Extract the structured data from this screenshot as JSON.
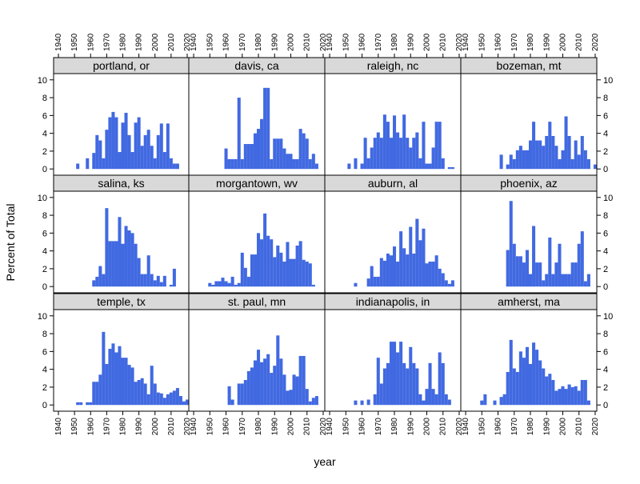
{
  "chart_data": {
    "type": "histogram-lattice",
    "xlabel": "year",
    "ylabel": "Percent of Total",
    "xlim": [
      1937,
      2021
    ],
    "ylim": [
      -0.7,
      10.7
    ],
    "x_ticks": [
      1940,
      1950,
      1960,
      1970,
      1980,
      1990,
      2000,
      2010,
      2020
    ],
    "y_ticks": [
      0,
      2,
      4,
      6,
      8,
      10
    ],
    "bin_start": 1945,
    "bin_width": 2,
    "bar_color": "#4169E1",
    "strip_color": "#d9d9d9",
    "panels": [
      {
        "name": "portland, or",
        "values": [
          0,
          0,
          0,
          0.6,
          0,
          0,
          1.2,
          0,
          1.8,
          3.8,
          3.2,
          1.2,
          4.4,
          5.8,
          6.4,
          5.8,
          1.9,
          5.2,
          6.3,
          3.8,
          1.9,
          5.2,
          5.8,
          2.6,
          3.8,
          4.4,
          2.6,
          1.2,
          3.8,
          5.1,
          1.9,
          5.1,
          1.2,
          0.6,
          0.6
        ]
      },
      {
        "name": "davis, ca",
        "values": [
          0,
          0,
          0,
          0,
          0,
          0,
          0,
          2.3,
          1.1,
          1.1,
          1.1,
          8,
          1.1,
          2.8,
          2.8,
          2.8,
          4,
          4.5,
          5.6,
          9.1,
          9.1,
          1.1,
          3.4,
          3.4,
          3.4,
          2.3,
          1.7,
          1.7,
          1.1,
          1.1,
          4.5,
          4,
          3.4,
          1.1,
          1.7,
          0.6
        ]
      },
      {
        "name": "raleigh, nc",
        "values": [
          0,
          0,
          0,
          0.6,
          0,
          1.2,
          0,
          0.6,
          3.5,
          1.2,
          2.4,
          3.5,
          4.1,
          3.5,
          6.1,
          5.3,
          3.5,
          6,
          4.1,
          3.5,
          6.1,
          3.5,
          2.4,
          3.5,
          4.1,
          1.2,
          5.3,
          0.6,
          0.6,
          2.4,
          5.3,
          5.3,
          1.2,
          0,
          0.2,
          0.2
        ]
      },
      {
        "name": "bozeman, mt",
        "values": [
          0,
          0,
          0,
          0,
          0,
          0,
          0,
          0,
          1.6,
          0,
          0.5,
          1.6,
          1.1,
          2.1,
          2.6,
          2.1,
          2.1,
          3.2,
          5.3,
          3.2,
          3.2,
          2.6,
          3.7,
          5.3,
          3.7,
          2.6,
          1.1,
          2.1,
          5.9,
          3.7,
          1.1,
          3.2,
          1.6,
          3.7,
          2.1,
          1.1,
          0,
          0.5
        ]
      },
      {
        "name": "salina, ks",
        "values": [
          0,
          0,
          0,
          0,
          0,
          0,
          0,
          0,
          0.7,
          1.1,
          2.3,
          1.4,
          8.8,
          5.1,
          5.1,
          5.1,
          7.8,
          4.8,
          6.8,
          6.3,
          6,
          4.8,
          3.2,
          1.4,
          1.4,
          3.5,
          1.4,
          0.7,
          1.2,
          0.5,
          1.2,
          0,
          0.2,
          2,
          0,
          0
        ]
      },
      {
        "name": "morgantown, wv",
        "values": [
          0,
          0,
          0.4,
          0.2,
          0.6,
          0.6,
          1,
          0.6,
          0.4,
          1.1,
          0.2,
          0.4,
          3.8,
          2.1,
          1.1,
          3.6,
          3.6,
          6,
          5.3,
          8.2,
          5.7,
          5.3,
          3.3,
          4.6,
          3.8,
          2.8,
          5,
          3.1,
          3.1,
          4.6,
          5.1,
          3,
          2.8,
          2.6,
          0.2,
          0
        ]
      },
      {
        "name": "auburn, al",
        "values": [
          0,
          0,
          0,
          0,
          0,
          0.4,
          0,
          0,
          0,
          0.9,
          2.3,
          1.1,
          1.1,
          3.2,
          2.9,
          3.7,
          3.5,
          4.5,
          2.8,
          6.2,
          4.3,
          3.6,
          6.7,
          3.7,
          7.6,
          5.2,
          6.5,
          2.6,
          2.8,
          2.8,
          3.5,
          2,
          1.5,
          0.7,
          0.3,
          0.7
        ]
      },
      {
        "name": "phoenix, az",
        "values": [
          0,
          0,
          0,
          0,
          0,
          0,
          0,
          0,
          0,
          0,
          4.1,
          9.6,
          4.8,
          3.4,
          3.4,
          2.7,
          4.1,
          1.4,
          6.8,
          2.7,
          2.7,
          0.7,
          1.4,
          5.5,
          1.4,
          2.7,
          4.8,
          1.4,
          1.4,
          1.4,
          2.7,
          2.7,
          4.8,
          6.2,
          0.6,
          1.4
        ]
      },
      {
        "name": "temple, tx",
        "values": [
          0,
          0,
          0,
          0.3,
          0.3,
          0,
          0.3,
          0.3,
          2.6,
          2.6,
          3.4,
          8.2,
          4.6,
          6.3,
          6.9,
          5.9,
          6.6,
          5.3,
          5.3,
          4.5,
          4.2,
          2.6,
          2.8,
          3,
          2.4,
          1.2,
          4.4,
          2.4,
          1.4,
          1.3,
          0.8,
          1.2,
          1.4,
          1.6,
          1.9,
          1,
          0.4,
          0.6
        ]
      },
      {
        "name": "st. paul, mn",
        "values": [
          0,
          0,
          0,
          0,
          0,
          0,
          0,
          0,
          2.1,
          0.6,
          0,
          2.4,
          2.4,
          2.8,
          3.8,
          4.2,
          5,
          6.2,
          4.8,
          5.2,
          5.7,
          3.6,
          4.4,
          7.8,
          5.2,
          3.4,
          1.6,
          1.7,
          3.4,
          3.2,
          5.5,
          5.5,
          1.8,
          0.4,
          0.8,
          1
        ]
      },
      {
        "name": "indianapolis, in",
        "values": [
          0,
          0,
          0,
          0,
          0,
          0.5,
          0,
          0.5,
          0,
          0.6,
          0,
          1.2,
          5.3,
          2.4,
          4.1,
          4.7,
          7.1,
          7.1,
          5.9,
          7.1,
          4.7,
          4.1,
          6.5,
          4.7,
          4.1,
          1.2,
          0.5,
          1.8,
          4.7,
          1.8,
          1.2,
          5.9,
          4.7,
          1.2,
          0.6,
          0
        ]
      },
      {
        "name": "amherst, ma",
        "values": [
          0,
          0,
          0.5,
          1.2,
          0,
          0,
          0.5,
          0,
          0.9,
          1.2,
          3.7,
          7.3,
          4.1,
          3.7,
          6,
          5.3,
          6.5,
          4.6,
          7,
          6.2,
          5,
          4.1,
          3.2,
          3.5,
          2.8,
          1.6,
          1.8,
          2.1,
          1.8,
          2.3,
          2,
          2.1,
          1.6,
          2.8,
          2.8,
          0.5
        ]
      }
    ]
  }
}
